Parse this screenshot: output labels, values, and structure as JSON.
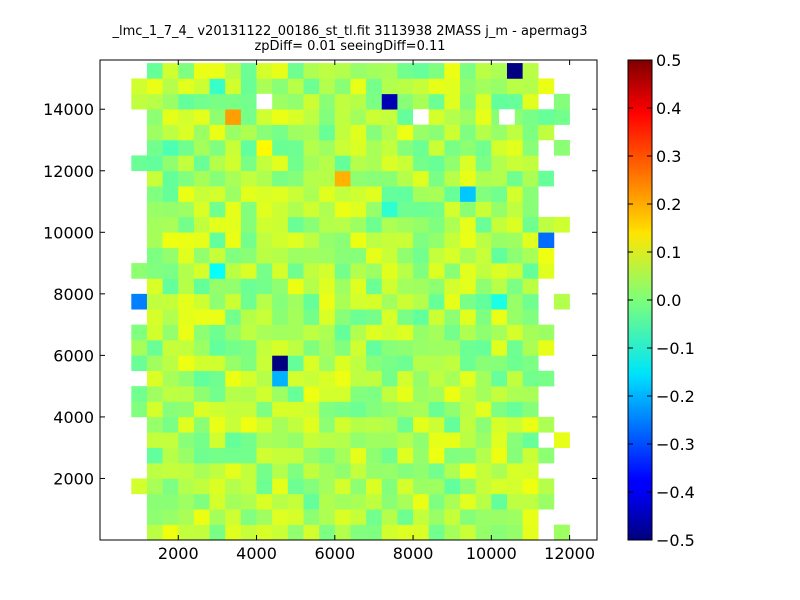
{
  "chart_data": {
    "type": "heatmap",
    "title": "_lmc_1_7_4_ v20131122_00186_st_tl.fit 3113938 2MASS j_m - apermag3",
    "subtitle": "zpDiff= 0.01 seeingDiff=0.11",
    "xlabel": "",
    "ylabel": "",
    "xlim": [
      0,
      12700
    ],
    "ylim": [
      0,
      15600
    ],
    "xticks": [
      "2000",
      "4000",
      "6000",
      "8000",
      "10000",
      "12000"
    ],
    "yticks": [
      "2000",
      "4000",
      "6000",
      "8000",
      "10000",
      "12000",
      "14000"
    ],
    "colorbar": {
      "colormap": "jet",
      "range": [
        -0.5,
        0.5
      ],
      "ticks": [
        "0.5",
        "0.4",
        "0.3",
        "0.2",
        "0.1",
        "0.0",
        "−0.1",
        "−0.2",
        "−0.3",
        "−0.4",
        "−0.5"
      ]
    },
    "grid": false,
    "cells": {
      "cell_width": 400,
      "cell_height": 500,
      "x_start": 800,
      "columns": 28,
      "rows": 31,
      "baseline_value": 0.04,
      "notes": "Most cells lie between -0.05 and 0.1; outliers listed below"
    },
    "outliers": [
      {
        "x": 10600,
        "y": 15250,
        "value": -0.5
      },
      {
        "x": 7400,
        "y": 14250,
        "value": -0.45
      },
      {
        "x": 3400,
        "y": 13750,
        "value": 0.22
      },
      {
        "x": 6200,
        "y": 11750,
        "value": 0.2
      },
      {
        "x": 4200,
        "y": 12750,
        "value": 0.13
      },
      {
        "x": 9400,
        "y": 11250,
        "value": -0.18
      },
      {
        "x": 11400,
        "y": 9750,
        "value": -0.27
      },
      {
        "x": 1000,
        "y": 7750,
        "value": -0.25
      },
      {
        "x": 3000,
        "y": 8750,
        "value": -0.12
      },
      {
        "x": 10200,
        "y": 7750,
        "value": -0.1
      },
      {
        "x": 4600,
        "y": 5750,
        "value": -0.5
      },
      {
        "x": 4600,
        "y": 5250,
        "value": -0.2
      },
      {
        "x": 7400,
        "y": 10750,
        "value": -0.08
      },
      {
        "x": 3000,
        "y": 14750,
        "value": -0.07
      },
      {
        "x": 1800,
        "y": 12750,
        "value": -0.05
      }
    ]
  }
}
